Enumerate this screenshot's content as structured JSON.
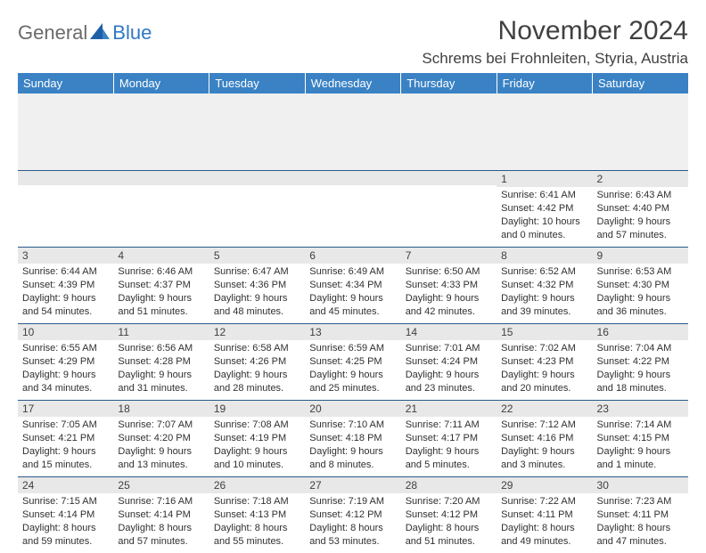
{
  "brand": {
    "general": "General",
    "blue": "Blue"
  },
  "title": "November 2024",
  "location": "Schrems bei Frohnleiten, Styria, Austria",
  "colors": {
    "header_bg": "#3a82c4",
    "header_text": "#ffffff",
    "daynum_bg": "#e8e8e8",
    "daynum_border": "#2a5a8a",
    "body_text": "#303030",
    "title_text": "#404040",
    "logo_gray": "#6a6a6a",
    "logo_blue": "#2f78c2"
  },
  "daysOfWeek": [
    "Sunday",
    "Monday",
    "Tuesday",
    "Wednesday",
    "Thursday",
    "Friday",
    "Saturday"
  ],
  "weeks": [
    [
      {
        "n": "",
        "sr": "",
        "ss": "",
        "dl": ""
      },
      {
        "n": "",
        "sr": "",
        "ss": "",
        "dl": ""
      },
      {
        "n": "",
        "sr": "",
        "ss": "",
        "dl": ""
      },
      {
        "n": "",
        "sr": "",
        "ss": "",
        "dl": ""
      },
      {
        "n": "",
        "sr": "",
        "ss": "",
        "dl": ""
      },
      {
        "n": "1",
        "sr": "Sunrise: 6:41 AM",
        "ss": "Sunset: 4:42 PM",
        "dl": "Daylight: 10 hours and 0 minutes."
      },
      {
        "n": "2",
        "sr": "Sunrise: 6:43 AM",
        "ss": "Sunset: 4:40 PM",
        "dl": "Daylight: 9 hours and 57 minutes."
      }
    ],
    [
      {
        "n": "3",
        "sr": "Sunrise: 6:44 AM",
        "ss": "Sunset: 4:39 PM",
        "dl": "Daylight: 9 hours and 54 minutes."
      },
      {
        "n": "4",
        "sr": "Sunrise: 6:46 AM",
        "ss": "Sunset: 4:37 PM",
        "dl": "Daylight: 9 hours and 51 minutes."
      },
      {
        "n": "5",
        "sr": "Sunrise: 6:47 AM",
        "ss": "Sunset: 4:36 PM",
        "dl": "Daylight: 9 hours and 48 minutes."
      },
      {
        "n": "6",
        "sr": "Sunrise: 6:49 AM",
        "ss": "Sunset: 4:34 PM",
        "dl": "Daylight: 9 hours and 45 minutes."
      },
      {
        "n": "7",
        "sr": "Sunrise: 6:50 AM",
        "ss": "Sunset: 4:33 PM",
        "dl": "Daylight: 9 hours and 42 minutes."
      },
      {
        "n": "8",
        "sr": "Sunrise: 6:52 AM",
        "ss": "Sunset: 4:32 PM",
        "dl": "Daylight: 9 hours and 39 minutes."
      },
      {
        "n": "9",
        "sr": "Sunrise: 6:53 AM",
        "ss": "Sunset: 4:30 PM",
        "dl": "Daylight: 9 hours and 36 minutes."
      }
    ],
    [
      {
        "n": "10",
        "sr": "Sunrise: 6:55 AM",
        "ss": "Sunset: 4:29 PM",
        "dl": "Daylight: 9 hours and 34 minutes."
      },
      {
        "n": "11",
        "sr": "Sunrise: 6:56 AM",
        "ss": "Sunset: 4:28 PM",
        "dl": "Daylight: 9 hours and 31 minutes."
      },
      {
        "n": "12",
        "sr": "Sunrise: 6:58 AM",
        "ss": "Sunset: 4:26 PM",
        "dl": "Daylight: 9 hours and 28 minutes."
      },
      {
        "n": "13",
        "sr": "Sunrise: 6:59 AM",
        "ss": "Sunset: 4:25 PM",
        "dl": "Daylight: 9 hours and 25 minutes."
      },
      {
        "n": "14",
        "sr": "Sunrise: 7:01 AM",
        "ss": "Sunset: 4:24 PM",
        "dl": "Daylight: 9 hours and 23 minutes."
      },
      {
        "n": "15",
        "sr": "Sunrise: 7:02 AM",
        "ss": "Sunset: 4:23 PM",
        "dl": "Daylight: 9 hours and 20 minutes."
      },
      {
        "n": "16",
        "sr": "Sunrise: 7:04 AM",
        "ss": "Sunset: 4:22 PM",
        "dl": "Daylight: 9 hours and 18 minutes."
      }
    ],
    [
      {
        "n": "17",
        "sr": "Sunrise: 7:05 AM",
        "ss": "Sunset: 4:21 PM",
        "dl": "Daylight: 9 hours and 15 minutes."
      },
      {
        "n": "18",
        "sr": "Sunrise: 7:07 AM",
        "ss": "Sunset: 4:20 PM",
        "dl": "Daylight: 9 hours and 13 minutes."
      },
      {
        "n": "19",
        "sr": "Sunrise: 7:08 AM",
        "ss": "Sunset: 4:19 PM",
        "dl": "Daylight: 9 hours and 10 minutes."
      },
      {
        "n": "20",
        "sr": "Sunrise: 7:10 AM",
        "ss": "Sunset: 4:18 PM",
        "dl": "Daylight: 9 hours and 8 minutes."
      },
      {
        "n": "21",
        "sr": "Sunrise: 7:11 AM",
        "ss": "Sunset: 4:17 PM",
        "dl": "Daylight: 9 hours and 5 minutes."
      },
      {
        "n": "22",
        "sr": "Sunrise: 7:12 AM",
        "ss": "Sunset: 4:16 PM",
        "dl": "Daylight: 9 hours and 3 minutes."
      },
      {
        "n": "23",
        "sr": "Sunrise: 7:14 AM",
        "ss": "Sunset: 4:15 PM",
        "dl": "Daylight: 9 hours and 1 minute."
      }
    ],
    [
      {
        "n": "24",
        "sr": "Sunrise: 7:15 AM",
        "ss": "Sunset: 4:14 PM",
        "dl": "Daylight: 8 hours and 59 minutes."
      },
      {
        "n": "25",
        "sr": "Sunrise: 7:16 AM",
        "ss": "Sunset: 4:14 PM",
        "dl": "Daylight: 8 hours and 57 minutes."
      },
      {
        "n": "26",
        "sr": "Sunrise: 7:18 AM",
        "ss": "Sunset: 4:13 PM",
        "dl": "Daylight: 8 hours and 55 minutes."
      },
      {
        "n": "27",
        "sr": "Sunrise: 7:19 AM",
        "ss": "Sunset: 4:12 PM",
        "dl": "Daylight: 8 hours and 53 minutes."
      },
      {
        "n": "28",
        "sr": "Sunrise: 7:20 AM",
        "ss": "Sunset: 4:12 PM",
        "dl": "Daylight: 8 hours and 51 minutes."
      },
      {
        "n": "29",
        "sr": "Sunrise: 7:22 AM",
        "ss": "Sunset: 4:11 PM",
        "dl": "Daylight: 8 hours and 49 minutes."
      },
      {
        "n": "30",
        "sr": "Sunrise: 7:23 AM",
        "ss": "Sunset: 4:11 PM",
        "dl": "Daylight: 8 hours and 47 minutes."
      }
    ]
  ]
}
